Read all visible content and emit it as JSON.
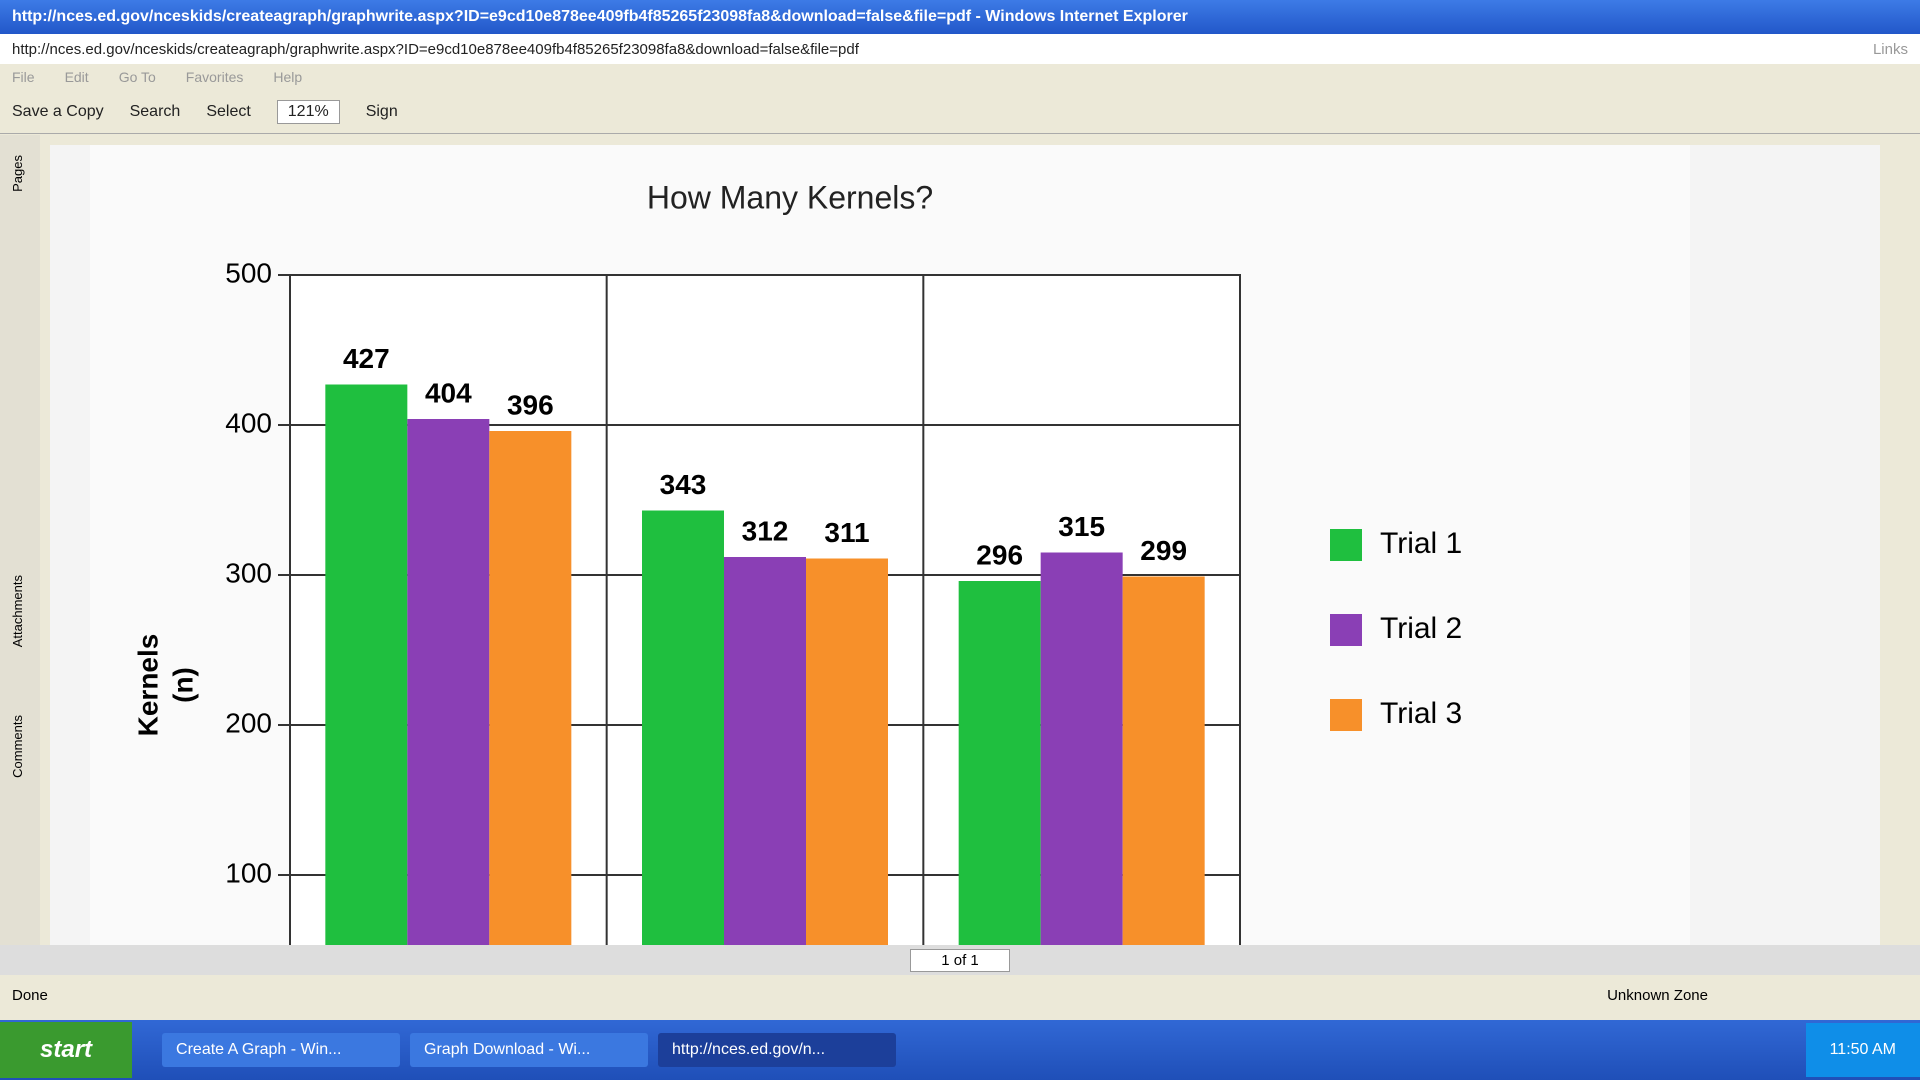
{
  "window": {
    "title": "http://nces.ed.gov/nceskids/createagraph/graphwrite.aspx?ID=e9cd10e878ee409fb4f85265f23098fa8&download=false&file=pdf - Windows Internet Explorer",
    "address": "http://nces.ed.gov/nceskids/createagraph/graphwrite.aspx?ID=e9cd10e878ee409fb4f85265f23098fa8&download=false&file=pdf",
    "links": "Links",
    "menu": [
      "File",
      "Edit",
      "Go To",
      "Favorites",
      "Help"
    ]
  },
  "toolbar": {
    "save": "Save a Copy",
    "search": "Search",
    "select": "Select",
    "zoom": "121%",
    "sign": "Sign"
  },
  "side_tabs": [
    "Pages",
    "Attachments",
    "Comments"
  ],
  "chart_data": {
    "type": "bar",
    "title": "How Many Kernels?",
    "y_label": [
      "Kernels",
      "(n)"
    ],
    "categories": [
      null,
      null,
      null
    ],
    "series": [
      {
        "name": "Trial 1",
        "color": "#1fbf3f",
        "values": [
          427,
          343,
          296
        ]
      },
      {
        "name": "Trial 2",
        "color": "#8a3fb5",
        "values": [
          404,
          312,
          315
        ]
      },
      {
        "name": "Trial 3",
        "color": "#f7902a",
        "values": [
          396,
          311,
          299
        ]
      }
    ],
    "ylim": [
      0,
      500
    ],
    "yticks": [
      100,
      200,
      300,
      400,
      500
    ],
    "grid": true,
    "legend": "right"
  },
  "pager": "1 of 1",
  "status": {
    "left": "Done",
    "zone": "Unknown Zone"
  },
  "taskbar": {
    "start": "start",
    "tasks": [
      "Create A Graph - Win...",
      "Graph Download - Wi...",
      "http://nces.ed.gov/n..."
    ],
    "clock": "11:50 AM"
  }
}
